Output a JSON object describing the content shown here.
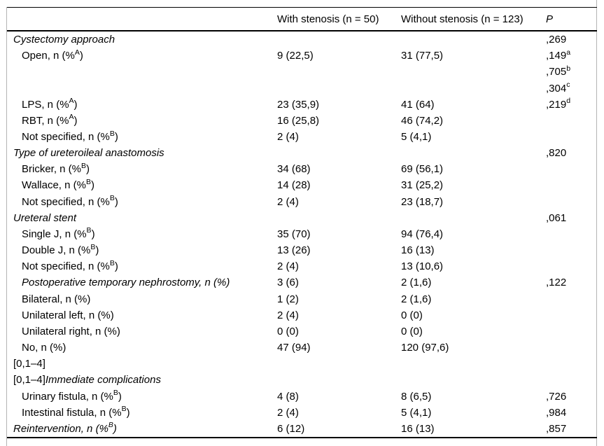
{
  "table": {
    "headers": {
      "label": "",
      "col1": "With stenosis (n = 50)",
      "col2": "Without stenosis (n = 123)",
      "p": "P"
    },
    "rows": [
      {
        "label": [
          {
            "t": "Cystectomy approach",
            "s": "i"
          }
        ],
        "indent": false,
        "c1": "",
        "c2": "",
        "p": ",269",
        "psup": ""
      },
      {
        "label": [
          {
            "t": "Open, n (%",
            "s": "n"
          },
          {
            "t": "A",
            "s": "sup"
          },
          {
            "t": ")",
            "s": "n"
          }
        ],
        "indent": true,
        "c1": "9 (22,5)",
        "c2": "31 (77,5)",
        "p": ",149",
        "psup": "a"
      },
      {
        "label": [],
        "indent": false,
        "c1": "",
        "c2": "",
        "p": ",705",
        "psup": "b"
      },
      {
        "label": [],
        "indent": false,
        "c1": "",
        "c2": "",
        "p": ",304",
        "psup": "c"
      },
      {
        "label": [
          {
            "t": "LPS, n (%",
            "s": "n"
          },
          {
            "t": "A",
            "s": "sup"
          },
          {
            "t": ")",
            "s": "n"
          }
        ],
        "indent": true,
        "c1": "23 (35,9)",
        "c2": "41 (64)",
        "p": ",219",
        "psup": "d"
      },
      {
        "label": [
          {
            "t": "RBT, n (%",
            "s": "n"
          },
          {
            "t": "A",
            "s": "sup"
          },
          {
            "t": ")",
            "s": "n"
          }
        ],
        "indent": true,
        "c1": "16 (25,8)",
        "c2": "46 (74,2)",
        "p": "",
        "psup": ""
      },
      {
        "label": [
          {
            "t": "Not specified, n (%",
            "s": "n"
          },
          {
            "t": "B",
            "s": "sup"
          },
          {
            "t": ")",
            "s": "n"
          }
        ],
        "indent": true,
        "c1": "2 (4)",
        "c2": "5 (4,1)",
        "p": "",
        "psup": ""
      },
      {
        "label": [
          {
            "t": "Type of ureteroileal anastomosis",
            "s": "i"
          }
        ],
        "indent": false,
        "c1": "",
        "c2": "",
        "p": ",820",
        "psup": ""
      },
      {
        "label": [
          {
            "t": "Bricker, n (%",
            "s": "n"
          },
          {
            "t": "B",
            "s": "sup"
          },
          {
            "t": ")",
            "s": "n"
          }
        ],
        "indent": true,
        "c1": "34 (68)",
        "c2": "69 (56,1)",
        "p": "",
        "psup": ""
      },
      {
        "label": [
          {
            "t": "Wallace, n (%",
            "s": "n"
          },
          {
            "t": "B",
            "s": "sup"
          },
          {
            "t": ")",
            "s": "n"
          }
        ],
        "indent": true,
        "c1": "14 (28)",
        "c2": "31 (25,2)",
        "p": "",
        "psup": ""
      },
      {
        "label": [
          {
            "t": "Not specified, n (%",
            "s": "n"
          },
          {
            "t": "B",
            "s": "sup"
          },
          {
            "t": ")",
            "s": "n"
          }
        ],
        "indent": true,
        "c1": "2 (4)",
        "c2": "23 (18,7)",
        "p": "",
        "psup": ""
      },
      {
        "label": [
          {
            "t": "Ureteral stent",
            "s": "i"
          }
        ],
        "indent": false,
        "c1": "",
        "c2": "",
        "p": ",061",
        "psup": ""
      },
      {
        "label": [
          {
            "t": "Single J, n (%",
            "s": "n"
          },
          {
            "t": "B",
            "s": "sup"
          },
          {
            "t": ")",
            "s": "n"
          }
        ],
        "indent": true,
        "c1": "35 (70)",
        "c2": "94 (76,4)",
        "p": "",
        "psup": ""
      },
      {
        "label": [
          {
            "t": "Double J, n (%",
            "s": "n"
          },
          {
            "t": "B",
            "s": "sup"
          },
          {
            "t": ")",
            "s": "n"
          }
        ],
        "indent": true,
        "c1": "13 (26)",
        "c2": "16 (13)",
        "p": "",
        "psup": ""
      },
      {
        "label": [
          {
            "t": "Not specified, n (%",
            "s": "n"
          },
          {
            "t": "B",
            "s": "sup"
          },
          {
            "t": ")",
            "s": "n"
          }
        ],
        "indent": true,
        "c1": "2 (4)",
        "c2": "13 (10,6)",
        "p": "",
        "psup": ""
      },
      {
        "label": [
          {
            "t": "Postoperative temporary nephrostomy, n (%)",
            "s": "i"
          }
        ],
        "indent": true,
        "c1": "3 (6)",
        "c2": "2 (1,6)",
        "p": ",122",
        "psup": ""
      },
      {
        "label": [
          {
            "t": "Bilateral, n (%)",
            "s": "n"
          }
        ],
        "indent": true,
        "c1": "1 (2)",
        "c2": "2 (1,6)",
        "p": "",
        "psup": ""
      },
      {
        "label": [
          {
            "t": "Unilateral left, n (%)",
            "s": "n"
          }
        ],
        "indent": true,
        "c1": "2 (4)",
        "c2": "0 (0)",
        "p": "",
        "psup": ""
      },
      {
        "label": [
          {
            "t": "Unilateral right, n (%)",
            "s": "n"
          }
        ],
        "indent": true,
        "c1": "0 (0)",
        "c2": "0 (0)",
        "p": "",
        "psup": ""
      },
      {
        "label": [
          {
            "t": "No, n (%)",
            "s": "n"
          }
        ],
        "indent": true,
        "c1": "47 (94)",
        "c2": "120 (97,6)",
        "p": "",
        "psup": ""
      },
      {
        "label": [
          {
            "t": "[0,1–4]",
            "s": "n"
          }
        ],
        "indent": false,
        "c1": "",
        "c2": "",
        "p": "",
        "psup": ""
      },
      {
        "label": [
          {
            "t": "[0,1–4]",
            "s": "n"
          },
          {
            "t": "Immediate complications",
            "s": "i"
          }
        ],
        "indent": false,
        "c1": "",
        "c2": "",
        "p": "",
        "psup": ""
      },
      {
        "label": [
          {
            "t": "Urinary fistula, n (%",
            "s": "n"
          },
          {
            "t": "B",
            "s": "sup"
          },
          {
            "t": ")",
            "s": "n"
          }
        ],
        "indent": true,
        "c1": "4 (8)",
        "c2": "8 (6,5)",
        "p": ",726",
        "psup": ""
      },
      {
        "label": [
          {
            "t": "Intestinal fistula, n (%",
            "s": "n"
          },
          {
            "t": "B",
            "s": "sup"
          },
          {
            "t": ")",
            "s": "n"
          }
        ],
        "indent": true,
        "c1": "2 (4)",
        "c2": "5 (4,1)",
        "p": ",984",
        "psup": ""
      },
      {
        "label": [
          {
            "t": "Reintervention, n (%",
            "s": "i"
          },
          {
            "t": "B",
            "s": "supi"
          },
          {
            "t": ")",
            "s": "i"
          }
        ],
        "indent": false,
        "c1": "6 (12)",
        "c2": "16 (13)",
        "p": ",857",
        "psup": ""
      }
    ]
  }
}
